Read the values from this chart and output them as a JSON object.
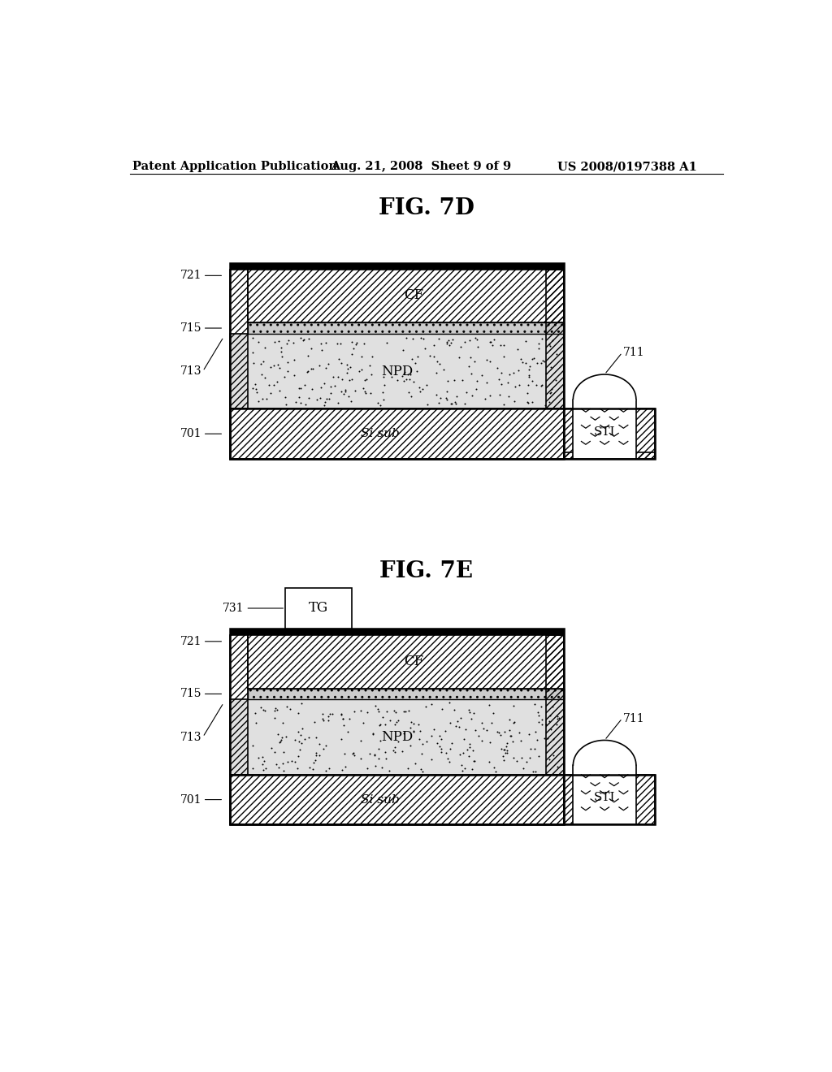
{
  "header_left": "Patent Application Publication",
  "header_mid": "Aug. 21, 2008  Sheet 9 of 9",
  "header_right": "US 2008/0197388 A1",
  "fig1_title": "FIG. 7D",
  "fig2_title": "FIG. 7E",
  "bg_color": "#ffffff",
  "label_fontsize": 10,
  "title_fontsize": 20,
  "header_fontsize": 10.5
}
